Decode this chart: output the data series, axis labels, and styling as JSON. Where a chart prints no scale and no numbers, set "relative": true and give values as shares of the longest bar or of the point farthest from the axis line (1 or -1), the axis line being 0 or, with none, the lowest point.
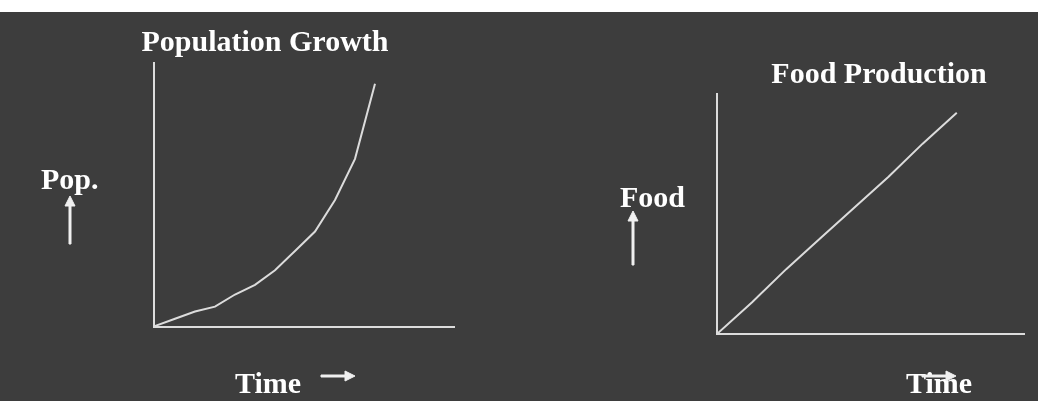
{
  "chart_data": [
    {
      "type": "line",
      "title": "Population Growth",
      "xlabel": "Time",
      "ylabel": "Pop.",
      "relative": true,
      "marker": "none",
      "line_style": "solid",
      "categories": [
        null,
        null,
        null,
        null,
        null,
        null,
        null,
        null,
        null,
        null,
        null,
        null,
        null,
        null,
        null,
        null
      ],
      "series": [
        {
          "color": "#dcdcdc",
          "values": [
            0,
            0.03,
            0.06,
            0.08,
            0.13,
            0.17,
            0.23,
            0.31,
            0.39,
            0.52,
            0.69,
            1,
            null,
            null,
            null,
            null
          ]
        }
      ]
    },
    {
      "type": "line",
      "title": "Food Production",
      "xlabel": "Time",
      "ylabel": "Food",
      "relative": true,
      "marker": "none",
      "line_style": "solid",
      "categories": [
        null,
        null,
        null,
        null,
        null,
        null,
        null,
        null,
        null,
        null
      ],
      "series": [
        {
          "color": "#dcdcdc",
          "values": [
            0,
            0.14,
            0.29,
            0.43,
            0.57,
            0.71,
            0.86,
            1,
            null,
            null
          ]
        }
      ]
    }
  ]
}
